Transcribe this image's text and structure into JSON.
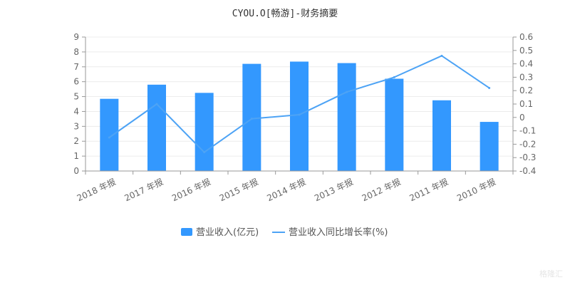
{
  "chart_data": {
    "type": "bar",
    "title": "CYOU.O[畅游]-财务摘要",
    "categories": [
      "2018 年报",
      "2017 年报",
      "2016 年报",
      "2015 年报",
      "2014 年报",
      "2013 年报",
      "2012 年报",
      "2011 年报",
      "2010 年报"
    ],
    "series": [
      {
        "name": "营业收入(亿元)",
        "type": "bar",
        "axis": "left",
        "color": "#3398fe",
        "values": [
          4.85,
          5.8,
          5.25,
          7.2,
          7.35,
          7.25,
          6.2,
          4.75,
          3.3
        ]
      },
      {
        "name": "营业收入同比增长率(%)",
        "type": "line",
        "axis": "right",
        "color": "#4da3f5",
        "values": [
          -0.15,
          0.1,
          -0.26,
          -0.01,
          0.02,
          0.19,
          0.3,
          0.46,
          0.22
        ]
      }
    ],
    "y_left": {
      "min": 0,
      "max": 9,
      "ticks": [
        "0",
        "1",
        "2",
        "3",
        "4",
        "5",
        "6",
        "7",
        "8",
        "9"
      ]
    },
    "y_right": {
      "min": -0.4,
      "max": 0.6,
      "ticks": [
        "-0.4",
        "-0.3",
        "-0.2",
        "-0.1",
        "0",
        "0.1",
        "0.2",
        "0.3",
        "0.4",
        "0.5",
        "0.6"
      ]
    },
    "grid": true,
    "legend_position": "bottom"
  },
  "watermark": "格隆汇"
}
